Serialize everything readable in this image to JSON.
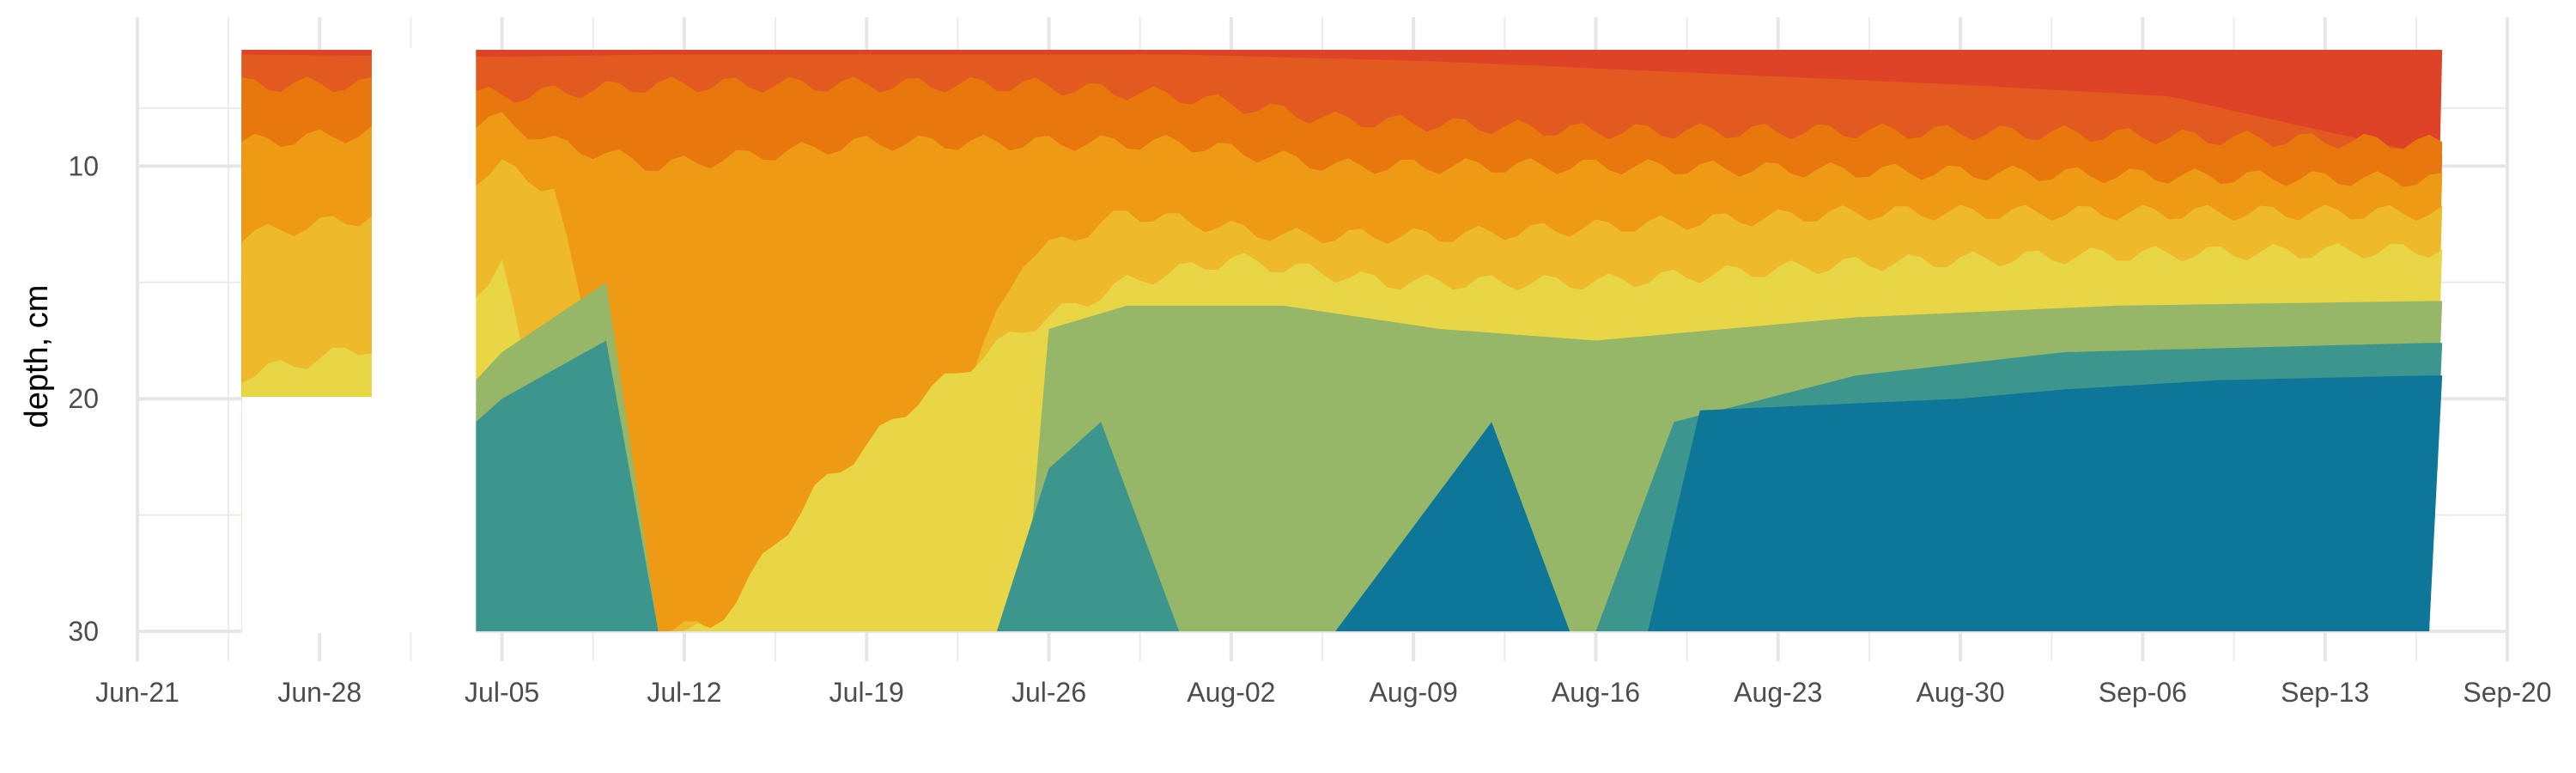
{
  "chart_data": {
    "type": "heatmap",
    "subtype": "filled-contour",
    "title": "",
    "xlabel": "",
    "ylabel": "depth, cm",
    "x_axis": {
      "type": "date",
      "range": [
        "2021-06-21",
        "2021-09-20"
      ],
      "ticks": [
        {
          "date": "2021-06-21",
          "label": "Jun-21"
        },
        {
          "date": "2021-06-28",
          "label": "Jun-28"
        },
        {
          "date": "2021-07-05",
          "label": "Jul-05"
        },
        {
          "date": "2021-07-12",
          "label": "Jul-12"
        },
        {
          "date": "2021-07-19",
          "label": "Jul-19"
        },
        {
          "date": "2021-07-26",
          "label": "Jul-26"
        },
        {
          "date": "2021-08-02",
          "label": "Aug-02"
        },
        {
          "date": "2021-08-09",
          "label": "Aug-09"
        },
        {
          "date": "2021-08-16",
          "label": "Aug-16"
        },
        {
          "date": "2021-08-23",
          "label": "Aug-23"
        },
        {
          "date": "2021-08-30",
          "label": "Aug-30"
        },
        {
          "date": "2021-09-06",
          "label": "Sep-06"
        },
        {
          "date": "2021-09-13",
          "label": "Sep-13"
        },
        {
          "date": "2021-09-20",
          "label": "Sep-20"
        }
      ]
    },
    "y_axis": {
      "reversed": true,
      "range": [
        5,
        30
      ],
      "ticks": [
        {
          "value": 10,
          "label": "10"
        },
        {
          "value": 20,
          "label": "20"
        },
        {
          "value": 30,
          "label": "30"
        }
      ]
    },
    "grid": true,
    "legend": "none",
    "palette": [
      "#0e7799",
      "#3d968d",
      "#95b767",
      "#e8d647",
      "#eeb92b",
      "#ee9a14",
      "#e8780e",
      "#e25a1f",
      "#de4328"
    ],
    "bands": [
      {
        "band": 0,
        "color": "#0e7799",
        "upper_depth": [
          []
        ]
      },
      {
        "band": 1,
        "color": "#3d968d"
      },
      {
        "band": 2,
        "color": "#95b767"
      },
      {
        "band": 3,
        "color": "#e8d647"
      },
      {
        "band": 4,
        "color": "#eeb92b"
      },
      {
        "band": 5,
        "color": "#ee9a14"
      },
      {
        "band": 6,
        "color": "#e8780e"
      },
      {
        "band": 7,
        "color": "#e25a1f"
      },
      {
        "band": 8,
        "color": "#de4328"
      }
    ],
    "data_extent": {
      "x": [
        "2021-06-25",
        "2021-09-17"
      ],
      "y": [
        5,
        30
      ]
    },
    "gaps": [
      {
        "from": "2021-06-30",
        "to": "2021-07-04",
        "depth": [
          5,
          20
        ]
      },
      {
        "from": "2021-06-25",
        "to": "2021-07-04",
        "depth": [
          20,
          30
        ]
      }
    ]
  }
}
